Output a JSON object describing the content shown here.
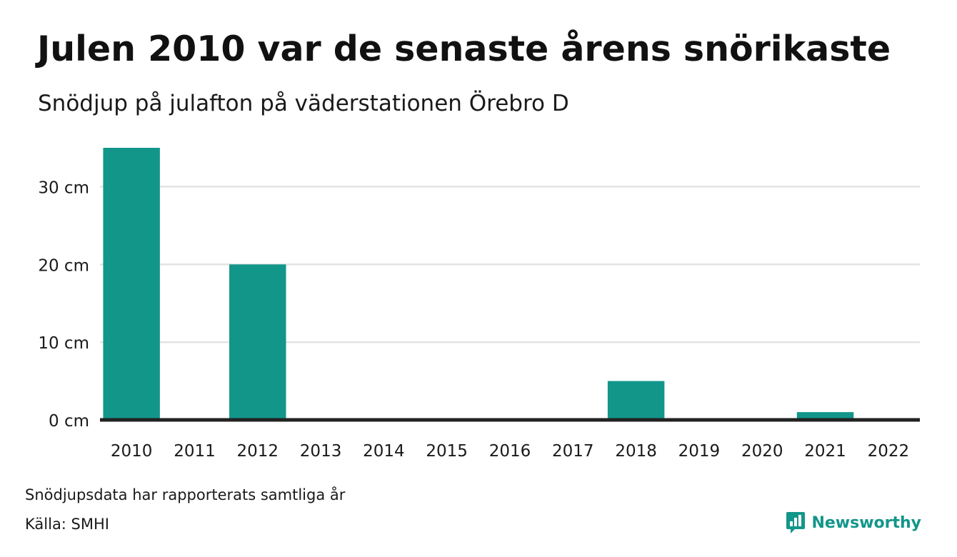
{
  "title": "Julen 2010 var de senaste årens snörikaste",
  "subtitle": "Snödjup på julafton på väderstationen Örebro D",
  "note": "Snödjupsdata har rapporterats samtliga år",
  "source": "Källa: SMHI",
  "brand": {
    "name": "Newsworthy",
    "icon": "newsworthy-logo-icon"
  },
  "chart_data": {
    "type": "bar",
    "categories": [
      "2010",
      "2011",
      "2012",
      "2013",
      "2014",
      "2015",
      "2016",
      "2017",
      "2018",
      "2019",
      "2020",
      "2021",
      "2022"
    ],
    "values": [
      35,
      0,
      20,
      0,
      0,
      0,
      0,
      0,
      5,
      0,
      0,
      1,
      0
    ],
    "title": "Julen 2010 var de senaste årens snörikaste",
    "subtitle": "Snödjup på julafton på väderstationen Örebro D",
    "xlabel": "",
    "ylabel": "",
    "ylim": [
      0,
      35
    ],
    "yticks": [
      0,
      10,
      20,
      30
    ],
    "ytick_labels": [
      "0 cm",
      "10 cm",
      "20 cm",
      "30 cm"
    ],
    "grid": true,
    "bar_color": "#13968a",
    "grid_color": "#e3e3e3",
    "baseline_color": "#222222"
  }
}
